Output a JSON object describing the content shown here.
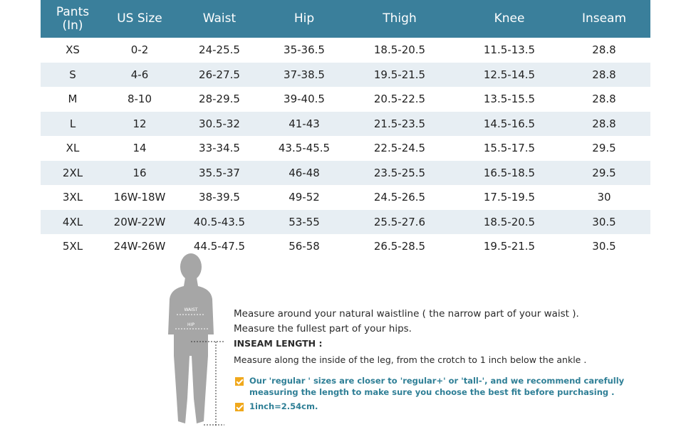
{
  "table": {
    "header": [
      "Pants (In)",
      "US Size",
      "Waist",
      "Hip",
      "Thigh",
      "Knee",
      "Inseam"
    ],
    "rows": [
      [
        "XS",
        "0-2",
        "24-25.5",
        "35-36.5",
        "18.5-20.5",
        "11.5-13.5",
        "28.8"
      ],
      [
        "S",
        "4-6",
        "26-27.5",
        "37-38.5",
        "19.5-21.5",
        "12.5-14.5",
        "28.8"
      ],
      [
        "M",
        "8-10",
        "28-29.5",
        "39-40.5",
        "20.5-22.5",
        "13.5-15.5",
        "28.8"
      ],
      [
        "L",
        "12",
        "30.5-32",
        "41-43",
        "21.5-23.5",
        "14.5-16.5",
        "28.8"
      ],
      [
        "XL",
        "14",
        "33-34.5",
        "43.5-45.5",
        "22.5-24.5",
        "15.5-17.5",
        "29.5"
      ],
      [
        "2XL",
        "16",
        "35.5-37",
        "46-48",
        "23.5-25.5",
        "16.5-18.5",
        "29.5"
      ],
      [
        "3XL",
        "16W-18W",
        "38-39.5",
        "49-52",
        "24.5-26.5",
        "17.5-19.5",
        "30"
      ],
      [
        "4XL",
        "20W-22W",
        "40.5-43.5",
        "53-55",
        "25.5-27.6",
        "18.5-20.5",
        "30.5"
      ],
      [
        "5XL",
        "24W-26W",
        "44.5-47.5",
        "56-58",
        "26.5-28.5",
        "19.5-21.5",
        "30.5"
      ]
    ]
  },
  "figure": {
    "waist_label": "WAIST",
    "hip_label": "HIP"
  },
  "instructions": {
    "waist": "Measure around your natural waistline ( the narrow part of your waist ).",
    "hip": "Measure the fullest part of your hips.",
    "inseam_title": "INSEAM LENGTH :",
    "inseam": "Measure along the inside of the leg, from the crotch to 1 inch  below the ankle ."
  },
  "notes": [
    "Our 'regular ' sizes are closer to 'regular+' or 'tall-', and we recommend carefully measuring the length to make sure you choose the best fit before purchasing .",
    "1inch=2.54cm."
  ]
}
